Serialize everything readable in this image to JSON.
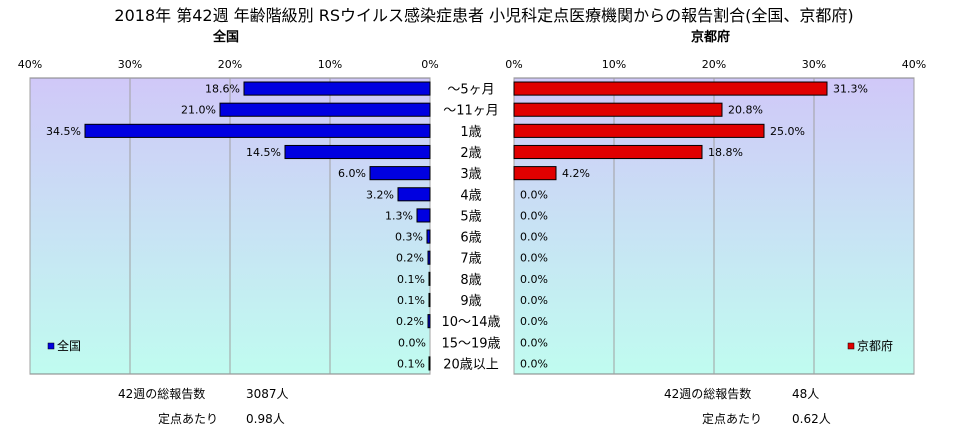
{
  "title": "2018年 第42週 年齢階級別 RSウイルス感染症患者 小児科定点医療機関からの報告割合(全国、京都府)",
  "colors": {
    "national_bar": "#0000e0",
    "kyoto_bar": "#e00000",
    "bg_top": "#d0c8f8",
    "bg_bottom": "#c0fcf0"
  },
  "chart_data": [
    {
      "type": "bar",
      "orientation": "horizontal",
      "title": "全国",
      "categories": [
        "～5ヶ月",
        "～11ヶ月",
        "1歳",
        "2歳",
        "3歳",
        "4歳",
        "5歳",
        "6歳",
        "7歳",
        "8歳",
        "9歳",
        "10～14歳",
        "15～19歳",
        "20歳以上"
      ],
      "series": [
        {
          "name": "全国",
          "values": [
            18.6,
            21.0,
            34.5,
            14.5,
            6.0,
            3.2,
            1.3,
            0.3,
            0.2,
            0.1,
            0.1,
            0.2,
            0.0,
            0.1
          ]
        }
      ],
      "value_labels": [
        "18.6%",
        "21.0%",
        "34.5%",
        "14.5%",
        "6.0%",
        "3.2%",
        "1.3%",
        "0.3%",
        "0.2%",
        "0.1%",
        "0.1%",
        "0.2%",
        "0.0%",
        "0.1%"
      ],
      "xlim": [
        0,
        40
      ],
      "x_direction": "reversed",
      "xticks": [
        "40%",
        "30%",
        "20%",
        "10%",
        "0%"
      ],
      "legend": "bottom-left"
    },
    {
      "type": "bar",
      "orientation": "horizontal",
      "title": "京都府",
      "categories": [
        "～5ヶ月",
        "～11ヶ月",
        "1歳",
        "2歳",
        "3歳",
        "4歳",
        "5歳",
        "6歳",
        "7歳",
        "8歳",
        "9歳",
        "10～14歳",
        "15～19歳",
        "20歳以上"
      ],
      "series": [
        {
          "name": "京都府",
          "values": [
            31.3,
            20.8,
            25.0,
            18.8,
            4.2,
            0.0,
            0.0,
            0.0,
            0.0,
            0.0,
            0.0,
            0.0,
            0.0,
            0.0
          ]
        }
      ],
      "value_labels": [
        "31.3%",
        "20.8%",
        "25.0%",
        "18.8%",
        "4.2%",
        "0.0%",
        "0.0%",
        "0.0%",
        "0.0%",
        "0.0%",
        "0.0%",
        "0.0%",
        "0.0%",
        "0.0%"
      ],
      "xlim": [
        0,
        40
      ],
      "xticks": [
        "0%",
        "10%",
        "20%",
        "30%",
        "40%"
      ],
      "legend": "bottom-right"
    }
  ],
  "stats": {
    "national": {
      "total_label": "42週の総報告数",
      "total_value": "3087人",
      "per_label": "定点あたり",
      "per_value": "0.98人"
    },
    "kyoto": {
      "total_label": "42週の総報告数",
      "total_value": "48人",
      "per_label": "定点あたり",
      "per_value": "0.62人"
    }
  }
}
